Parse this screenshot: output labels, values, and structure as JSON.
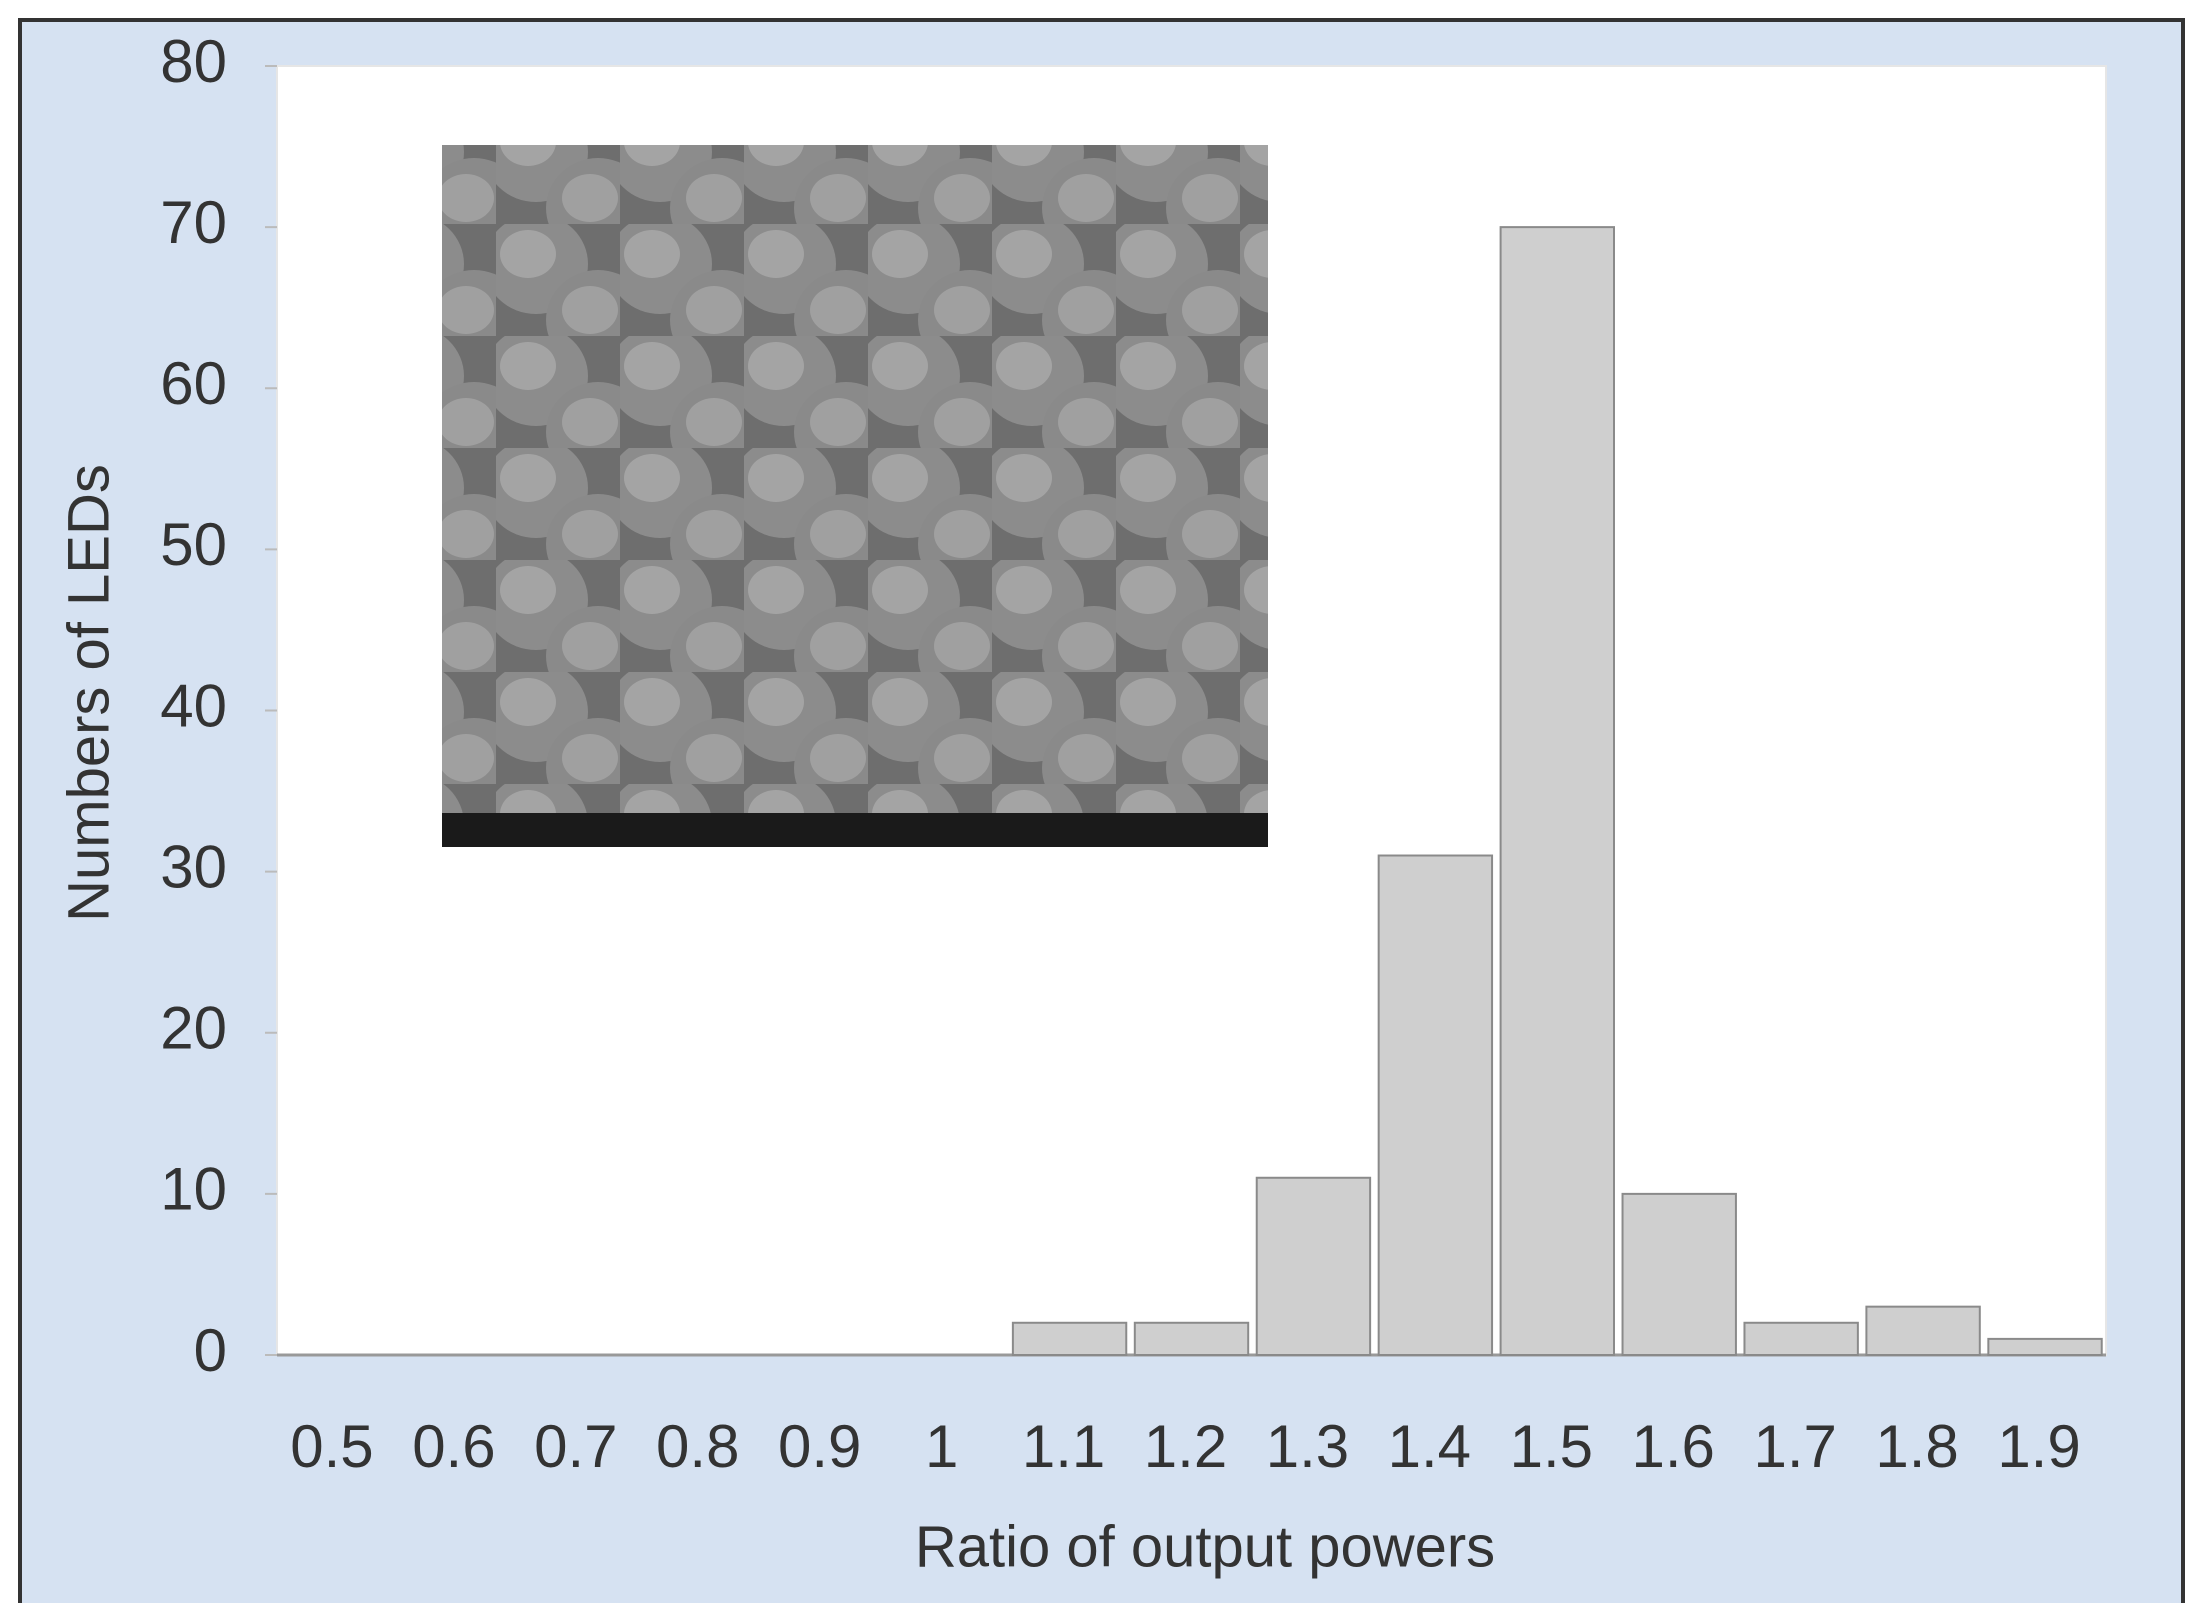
{
  "chart_data": {
    "type": "bar",
    "x_label": "Ratio of output powers",
    "y_label": "Numbers of LEDs",
    "categories": [
      "0.5",
      "0.6",
      "0.7",
      "0.8",
      "0.9",
      "1",
      "1.1",
      "1.2",
      "1.3",
      "1.4",
      "1.5",
      "1.6",
      "1.7",
      "1.8",
      "1.9"
    ],
    "values": [
      0,
      0,
      0,
      0,
      0,
      0,
      2,
      2,
      11,
      31,
      70,
      10,
      2,
      3,
      1
    ],
    "color": "#cfcfcf",
    "ylim": [
      0,
      80
    ],
    "yticks": [
      0,
      10,
      20,
      30,
      40,
      50,
      60,
      70,
      80
    ],
    "grid": false
  }
}
